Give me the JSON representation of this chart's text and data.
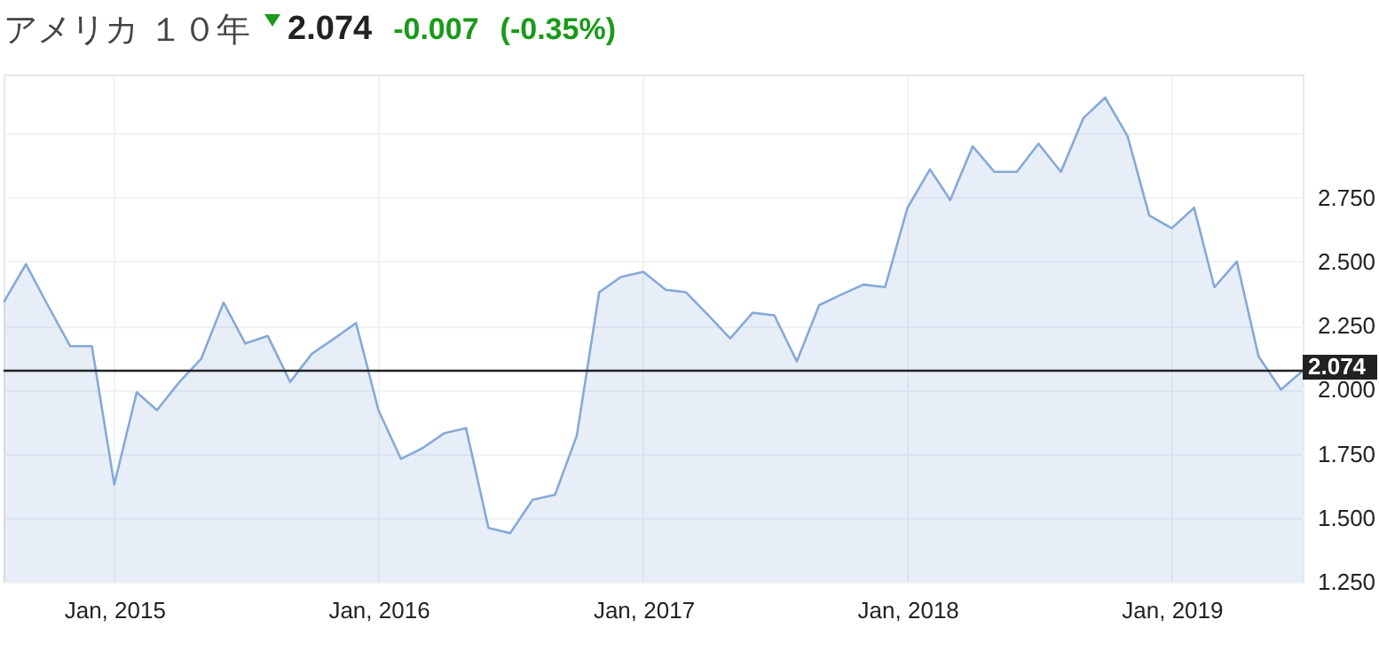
{
  "chart_data": {
    "type": "area",
    "title": "アメリカ １０年",
    "annotations": [
      "2.074",
      "-0.007",
      "(-0.35%)"
    ],
    "x": [
      "2014-08",
      "2014-09",
      "2014-10",
      "2014-11",
      "2014-12",
      "2015-01",
      "2015-02",
      "2015-03",
      "2015-04",
      "2015-05",
      "2015-06",
      "2015-07",
      "2015-08",
      "2015-09",
      "2015-10",
      "2015-11",
      "2015-12",
      "2016-01",
      "2016-02",
      "2016-03",
      "2016-04",
      "2016-05",
      "2016-06",
      "2016-07",
      "2016-08",
      "2016-09",
      "2016-10",
      "2016-11",
      "2016-12",
      "2017-01",
      "2017-02",
      "2017-03",
      "2017-04",
      "2017-05",
      "2017-06",
      "2017-07",
      "2017-08",
      "2017-09",
      "2017-10",
      "2017-11",
      "2017-12",
      "2018-01",
      "2018-02",
      "2018-03",
      "2018-04",
      "2018-05",
      "2018-06",
      "2018-07",
      "2018-08",
      "2018-09",
      "2018-10",
      "2018-11",
      "2018-12",
      "2019-01",
      "2019-02",
      "2019-03",
      "2019-04",
      "2019-05",
      "2019-06",
      "2019-07"
    ],
    "series": [
      {
        "color": "#86a9d8",
        "values": [
          2.34,
          2.49,
          2.33,
          2.17,
          2.17,
          1.63,
          1.99,
          1.92,
          2.03,
          2.12,
          2.34,
          2.18,
          2.21,
          2.03,
          2.14,
          2.2,
          2.26,
          1.92,
          1.73,
          1.77,
          1.83,
          1.85,
          1.46,
          1.44,
          1.57,
          1.59,
          1.82,
          2.38,
          2.44,
          2.46,
          2.39,
          2.38,
          2.29,
          2.2,
          2.3,
          2.29,
          2.11,
          2.33,
          2.37,
          2.41,
          2.4,
          2.71,
          2.86,
          2.74,
          2.95,
          2.85,
          2.85,
          2.96,
          2.85,
          3.06,
          3.14,
          2.99,
          2.68,
          2.63,
          2.71,
          2.4,
          2.5,
          2.13,
          2.0,
          2.074
        ]
      }
    ],
    "xlim": [
      "2014-08",
      "2019-07"
    ],
    "xticks": [
      {
        "value": "2015-01",
        "label": "Jan, 2015"
      },
      {
        "value": "2016-01",
        "label": "Jan, 2016"
      },
      {
        "value": "2017-01",
        "label": "Jan, 2017"
      },
      {
        "value": "2018-01",
        "label": "Jan, 2018"
      },
      {
        "value": "2019-01",
        "label": "Jan, 2019"
      }
    ],
    "ylim": [
      1.25,
      3.23
    ],
    "yticks": [
      {
        "value": 1.25,
        "label": "1.250"
      },
      {
        "value": 1.5,
        "label": "1.500"
      },
      {
        "value": 1.75,
        "label": "1.750"
      },
      {
        "value": 2.0,
        "label": "2.000"
      },
      {
        "value": 2.25,
        "label": "2.250"
      },
      {
        "value": 2.5,
        "label": "2.500"
      },
      {
        "value": 2.75,
        "label": "2.750"
      },
      {
        "value": 3.0,
        "label": null
      }
    ],
    "ref_lines": [
      {
        "axis": "y",
        "value": 2.074,
        "label": "2.074",
        "color": "#222222"
      }
    ],
    "grid": true
  }
}
